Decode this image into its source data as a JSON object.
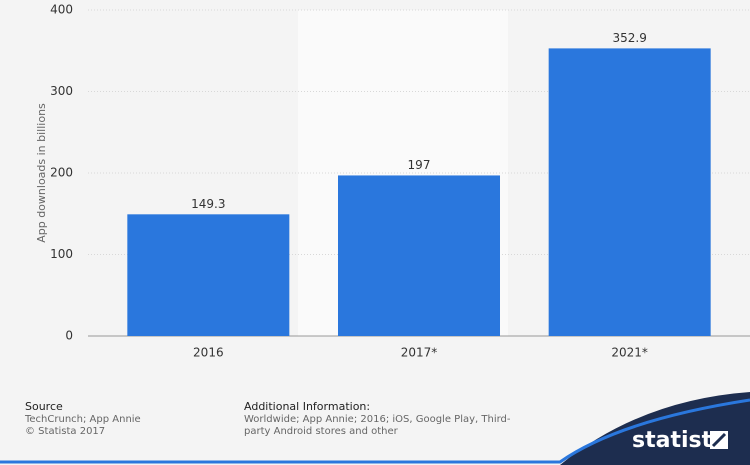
{
  "chart_data": {
    "type": "bar",
    "y_label": "App downloads in billions",
    "categories": [
      "2016",
      "2017*",
      "2021*"
    ],
    "values": [
      149.3,
      197,
      352.9
    ],
    "color": "#2a77dd",
    "ylim": [
      0,
      400
    ],
    "yticks": [
      0,
      100,
      200,
      300,
      400
    ],
    "grid": true
  },
  "footer": {
    "source_title": "Source",
    "source_lines": [
      "TechCrunch; App Annie",
      "© Statista 2017"
    ],
    "info_title": "Additional Information:",
    "info_text": "Worldwide; App Annie; 2016; iOS, Google Play, Third-party Android stores and other",
    "brand": "statista"
  }
}
